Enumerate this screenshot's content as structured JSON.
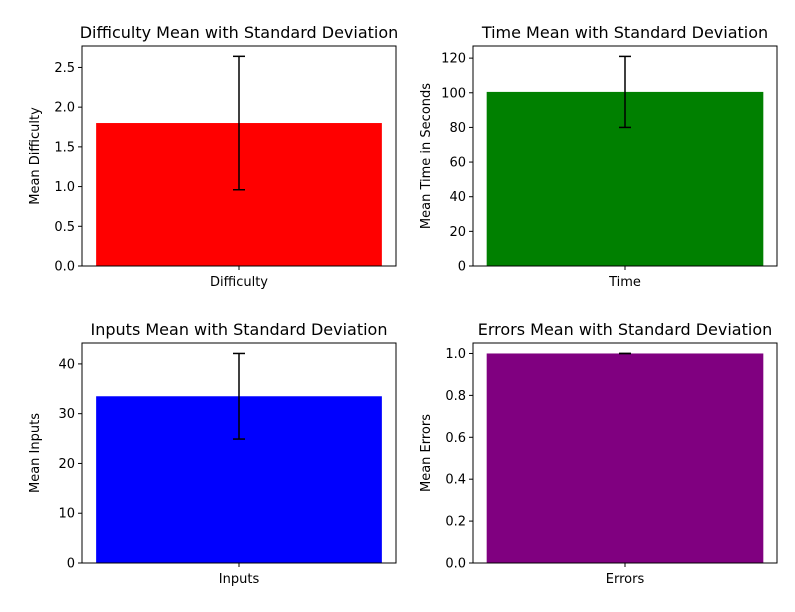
{
  "chart_data": [
    {
      "type": "bar",
      "title": "Difficulty Mean with Standard Deviation",
      "ylabel": "Mean Difficulty",
      "categories": [
        "Difficulty"
      ],
      "values": [
        1.8
      ],
      "error": [
        0.84
      ],
      "color": "#ff0000",
      "ylim": [
        0,
        2.77
      ],
      "yticks": [
        0.0,
        0.5,
        1.0,
        1.5,
        2.0,
        2.5
      ],
      "ytick_labels": [
        "0.0",
        "0.5",
        "1.0",
        "1.5",
        "2.0",
        "2.5"
      ]
    },
    {
      "type": "bar",
      "title": "Time Mean with Standard Deviation",
      "ylabel": "Mean Time in Seconds",
      "categories": [
        "Time"
      ],
      "values": [
        100.5
      ],
      "error": [
        20.5
      ],
      "color": "#008000",
      "ylim": [
        0,
        127
      ],
      "yticks": [
        0,
        20,
        40,
        60,
        80,
        100,
        120
      ],
      "ytick_labels": [
        "0",
        "20",
        "40",
        "60",
        "80",
        "100",
        "120"
      ]
    },
    {
      "type": "bar",
      "title": "Inputs Mean with Standard Deviation",
      "ylabel": "Mean Inputs",
      "categories": [
        "Inputs"
      ],
      "values": [
        33.5
      ],
      "error": [
        8.6
      ],
      "color": "#0000ff",
      "ylim": [
        0,
        44.2
      ],
      "yticks": [
        0,
        10,
        20,
        30,
        40
      ],
      "ytick_labels": [
        "0",
        "10",
        "20",
        "30",
        "40"
      ]
    },
    {
      "type": "bar",
      "title": "Errors Mean with Standard Deviation",
      "ylabel": "Mean Errors",
      "categories": [
        "Errors"
      ],
      "values": [
        1.0
      ],
      "error": [
        0.0
      ],
      "color": "#800080",
      "ylim": [
        0,
        1.05
      ],
      "yticks": [
        0.0,
        0.2,
        0.4,
        0.6,
        0.8,
        1.0
      ],
      "ytick_labels": [
        "0.0",
        "0.2",
        "0.4",
        "0.6",
        "0.8",
        "1.0"
      ]
    }
  ]
}
